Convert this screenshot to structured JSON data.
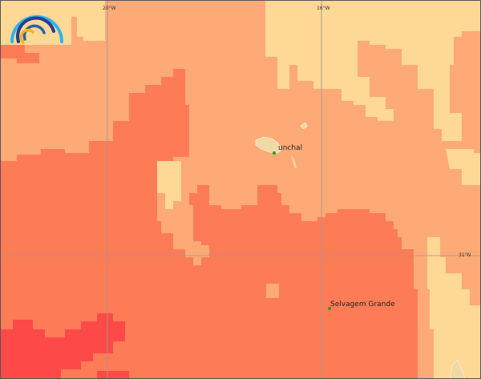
{
  "map": {
    "graticule": {
      "lon_labels": [
        "20°W",
        "16°W"
      ],
      "lat_labels": [
        "31°N"
      ]
    },
    "places": [
      {
        "name": "unchal",
        "marker_color": "#2a9d2a"
      },
      {
        "name": "Selvagem Grande",
        "marker_color": "#2a9d2a"
      }
    ],
    "colors": {
      "level_1": "#fed895",
      "level_2": "#fdaa76",
      "level_3": "#fd7c56",
      "level_4": "#fd4a48",
      "land": "#efd9a4",
      "grid": "#999999"
    },
    "logo": {
      "icon": "rainbow-arc-logo"
    }
  }
}
